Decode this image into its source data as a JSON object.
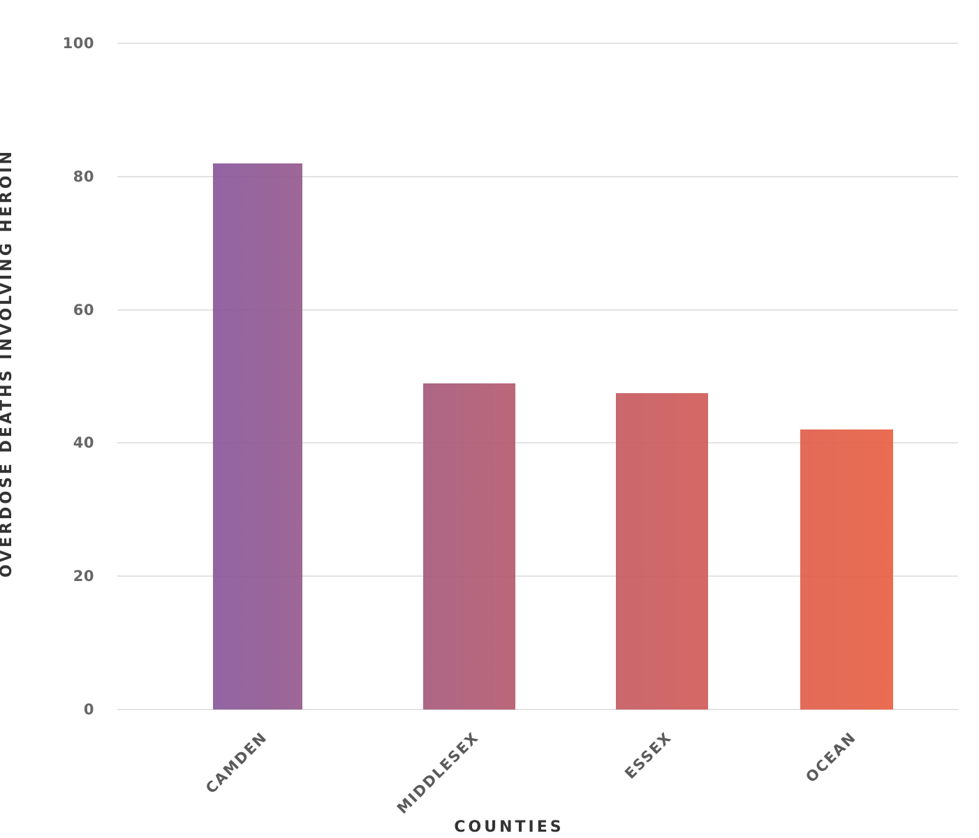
{
  "chart_data": {
    "type": "bar",
    "title": "",
    "xlabel": "COUNTIES",
    "ylabel": "OVERDOSE DEATHS INVOLVING HEROIN",
    "categories": [
      "CAMDEN",
      "MIDDLESEX",
      "ESSEX",
      "OCEAN"
    ],
    "values": [
      82,
      49,
      47.5,
      42
    ],
    "ylim": [
      0,
      100
    ],
    "yticks": [
      0,
      20,
      40,
      60,
      80,
      100
    ],
    "ytick_labels": [
      "0",
      "20",
      "40",
      "60",
      "80",
      "100"
    ],
    "grid": true,
    "legend": null,
    "bar_colors": [
      "#8a5799",
      "#ad5a78",
      "#cc5b5e",
      "#e35e47"
    ],
    "gradient": {
      "start": "#8a5799",
      "end": "#e85f42"
    }
  },
  "axes": {
    "x_title": "COUNTIES",
    "y_title": "OVERDOSE DEATHS INVOLVING HEROIN"
  }
}
